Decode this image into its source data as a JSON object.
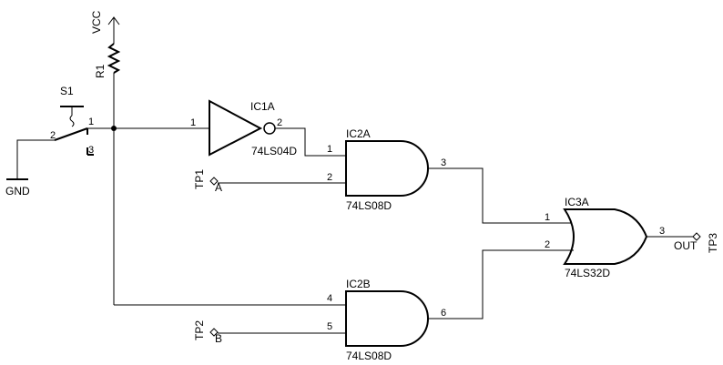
{
  "supply": {
    "vcc": "VCC",
    "gnd": "GND"
  },
  "resistor": {
    "ref": "R1"
  },
  "switch": {
    "ref": "S1",
    "pin1": "1",
    "pin2": "2",
    "pin3": "3"
  },
  "ic1a": {
    "ref": "IC1A",
    "part": "74LS04D",
    "pin_in": "1",
    "pin_out": "2"
  },
  "ic2a": {
    "ref": "IC2A",
    "part": "74LS08D",
    "pin_a": "1",
    "pin_b": "2",
    "pin_out": "3"
  },
  "ic2b": {
    "ref": "IC2B",
    "part": "74LS08D",
    "pin_a": "4",
    "pin_b": "5",
    "pin_out": "6"
  },
  "ic3a": {
    "ref": "IC3A",
    "part": "74LS32D",
    "pin_a": "1",
    "pin_b": "2",
    "pin_out": "3"
  },
  "tp1": {
    "ref": "TP1",
    "net": "A"
  },
  "tp2": {
    "ref": "TP2",
    "net": "B"
  },
  "tp3": {
    "ref": "TP3",
    "net": "OUT"
  }
}
